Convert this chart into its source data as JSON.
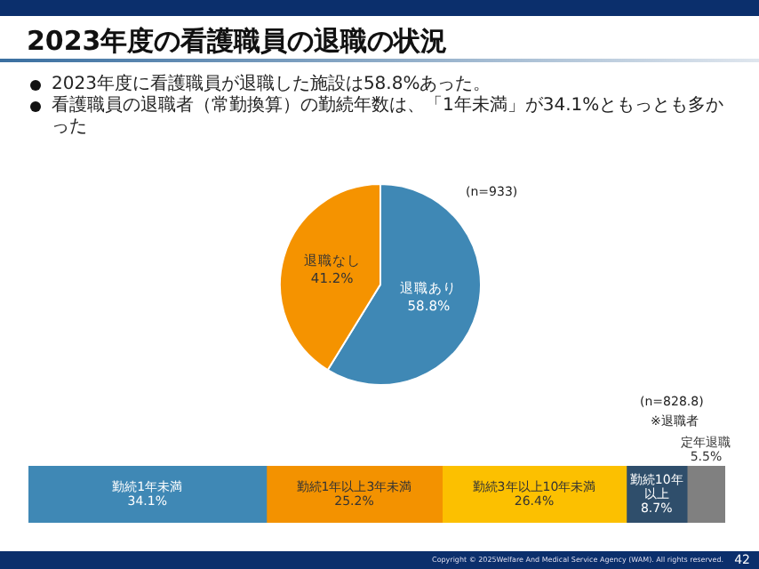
{
  "chart_data": [
    {
      "type": "pie",
      "title": "2023年度の看護職員の退職の状況",
      "categories": [
        "退職あり",
        "退職なし"
      ],
      "values": [
        58.8,
        41.2
      ],
      "colors": [
        "#3f88b5",
        "#f59300"
      ],
      "value_labels": [
        "58.8%",
        "41.2%"
      ],
      "legend": false,
      "annotations": [
        "2023年度に看護職員が退職した施設は58.8%あった。",
        "看護職員の退職者（常勤換算）の勤続年数は、「1年未満」が34.1%ともっとも多かった",
        "(n=933)"
      ]
    },
    {
      "type": "bar",
      "orientation": "horizontal",
      "stacked": true,
      "categories": [
        null
      ],
      "legend": false,
      "tick_labels": false,
      "series": [
        {
          "name": "勤続1年未満",
          "color": "#3f88b5",
          "values": [
            34.1
          ],
          "value_labels": [
            "34.1%"
          ]
        },
        {
          "name": "勤続1年以上3年未満",
          "color": "#f39200",
          "values": [
            25.2
          ],
          "value_labels": [
            "25.2%"
          ]
        },
        {
          "name": "勤続3年以上10年未満",
          "color": "#fcc000",
          "values": [
            26.4
          ],
          "value_labels": [
            "26.4%"
          ]
        },
        {
          "name": "勤続10年以上",
          "color": "#2f4e6b",
          "values": [
            8.7
          ],
          "value_labels": [
            "8.7%"
          ]
        },
        {
          "name": "定年退職",
          "color": "#808080",
          "values": [
            5.5
          ],
          "value_labels": [
            "5.5%"
          ]
        }
      ],
      "annotations": [
        "(n=828.8)",
        "※退職者",
        "Copyright © 2025Welfare And Medical Service Agency (WAM). All rights reserved.",
        "42"
      ]
    }
  ]
}
